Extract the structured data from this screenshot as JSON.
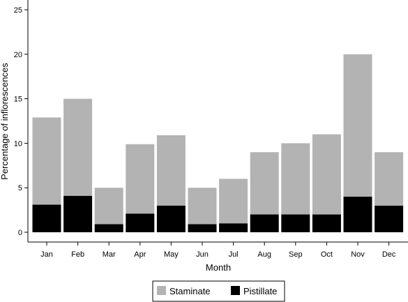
{
  "chart_data": {
    "type": "bar",
    "stacked": true,
    "categories": [
      "Jan",
      "Feb",
      "Mar",
      "Apr",
      "May",
      "Jun",
      "Jul",
      "Aug",
      "Sep",
      "Oct",
      "Nov",
      "Dec"
    ],
    "series": [
      {
        "name": "Pistillate",
        "color": "#000000",
        "values": [
          3.1,
          4.1,
          0.9,
          2.1,
          3.0,
          0.9,
          1.0,
          2.0,
          2.0,
          2.0,
          4.0,
          3.0
        ]
      },
      {
        "name": "Staminate",
        "color": "#b3b3b3",
        "values": [
          9.8,
          10.9,
          4.1,
          7.8,
          7.9,
          4.1,
          5.0,
          7.0,
          8.0,
          9.0,
          16.0,
          6.0
        ]
      }
    ],
    "totals": [
      12.9,
      15.0,
      5.0,
      9.9,
      10.9,
      5.0,
      6.0,
      9.0,
      10.0,
      11.0,
      20.0,
      9.0
    ],
    "xlabel": "Month",
    "ylabel": "Percentage of inflorescences",
    "ylim": [
      0,
      25
    ],
    "yticks": [
      "0",
      "5",
      "10",
      "15",
      "20",
      "25"
    ],
    "grid": false,
    "legend": {
      "placement": "bottom",
      "entries": [
        {
          "label": "Staminate",
          "color": "#b3b3b3"
        },
        {
          "label": "Pistillate",
          "color": "#000000"
        }
      ]
    }
  }
}
